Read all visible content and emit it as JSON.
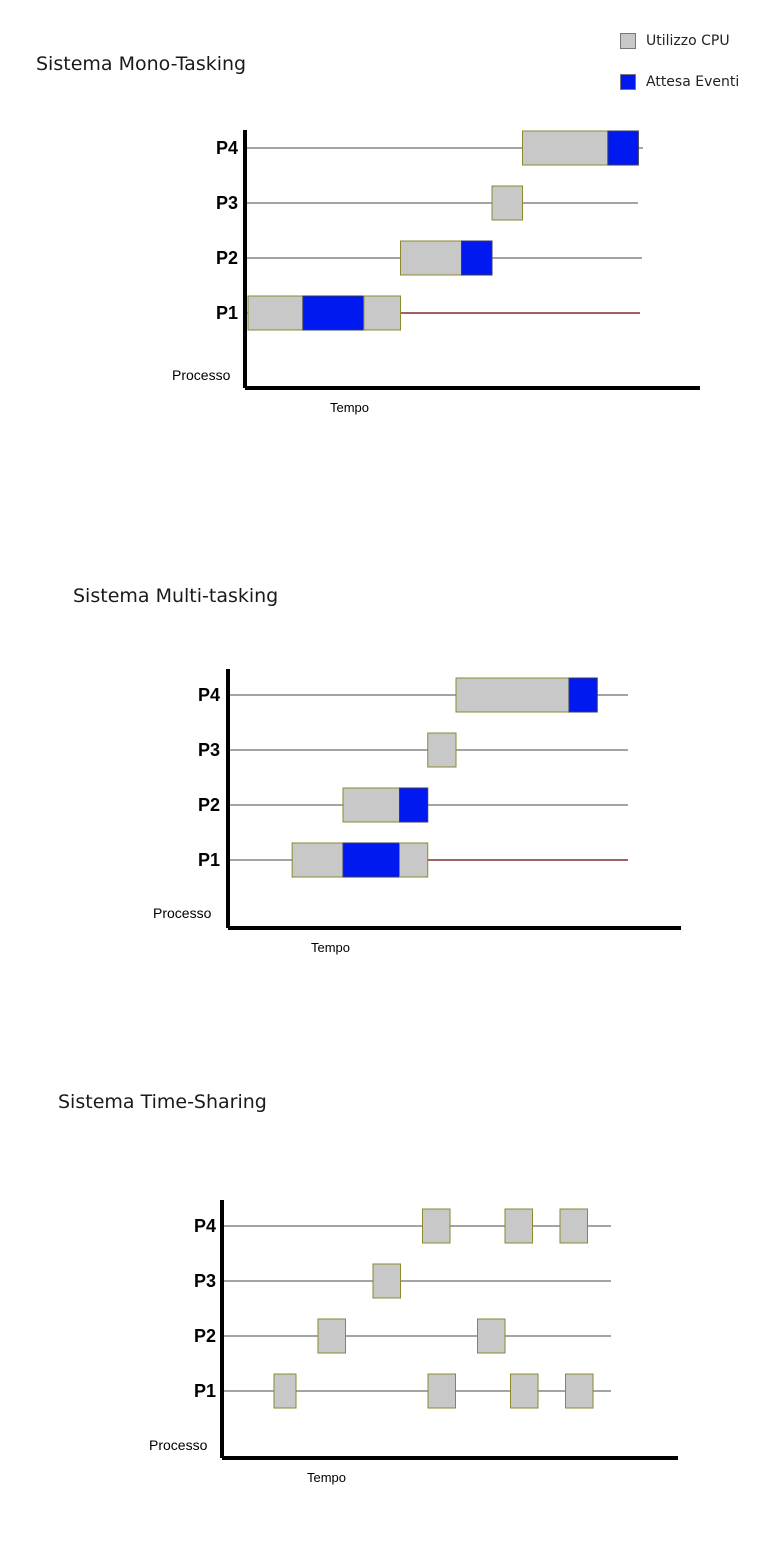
{
  "legend": {
    "cpu": {
      "label": "Utilizzo CPU",
      "color": "#c8c8c8",
      "border": "#7a7a7a"
    },
    "wait": {
      "label": "Attesa Eventi",
      "color": "#0019f0",
      "border": "#3a3a5a"
    }
  },
  "colors": {
    "axis": "#000000",
    "line": "#6e6e6e",
    "p1_line_after": "#7a1a1a",
    "box_edge": "#8a8a30"
  },
  "y_label": "Processo",
  "x_label": "Tempo",
  "chart_data": [
    {
      "type": "gantt",
      "title": "Sistema Mono-Tasking",
      "processes": [
        "P1",
        "P2",
        "P3",
        "P4"
      ],
      "segments": {
        "P1": [
          {
            "start": 0,
            "end": 4.5,
            "kind": "cpu"
          },
          {
            "start": 4.5,
            "end": 9.5,
            "kind": "wait"
          },
          {
            "start": 9.5,
            "end": 12.5,
            "kind": "cpu"
          }
        ],
        "P2": [
          {
            "start": 12.5,
            "end": 17.5,
            "kind": "cpu"
          },
          {
            "start": 17.5,
            "end": 20,
            "kind": "wait"
          }
        ],
        "P3": [
          {
            "start": 20,
            "end": 22.5,
            "kind": "cpu"
          }
        ],
        "P4": [
          {
            "start": 22.5,
            "end": 29.5,
            "kind": "cpu"
          },
          {
            "start": 29.5,
            "end": 32,
            "kind": "wait"
          }
        ]
      }
    },
    {
      "type": "gantt",
      "title": "Sistema Multi-tasking",
      "processes": [
        "P1",
        "P2",
        "P3",
        "P4"
      ],
      "segments": {
        "P1": [
          {
            "start": 5.5,
            "end": 10,
            "kind": "cpu"
          },
          {
            "start": 10,
            "end": 15,
            "kind": "wait"
          },
          {
            "start": 15,
            "end": 17.5,
            "kind": "cpu"
          }
        ],
        "P2": [
          {
            "start": 10,
            "end": 15,
            "kind": "cpu"
          },
          {
            "start": 15,
            "end": 17.5,
            "kind": "wait"
          }
        ],
        "P3": [
          {
            "start": 17.5,
            "end": 20,
            "kind": "cpu"
          }
        ],
        "P4": [
          {
            "start": 20,
            "end": 30,
            "kind": "cpu"
          },
          {
            "start": 30,
            "end": 32.5,
            "kind": "wait"
          }
        ]
      }
    },
    {
      "type": "gantt",
      "title": "Sistema Time-Sharing",
      "processes": [
        "P1",
        "P2",
        "P3",
        "P4"
      ],
      "segments": {
        "P1": [
          {
            "start": 4,
            "end": 6,
            "kind": "cpu"
          },
          {
            "start": 18,
            "end": 20.5,
            "kind": "cpu"
          },
          {
            "start": 25.5,
            "end": 28,
            "kind": "cpu"
          },
          {
            "start": 30.5,
            "end": 33,
            "kind": "cpu"
          }
        ],
        "P2": [
          {
            "start": 8,
            "end": 10.5,
            "kind": "cpu"
          },
          {
            "start": 22.5,
            "end": 25,
            "kind": "cpu"
          }
        ],
        "P3": [
          {
            "start": 13,
            "end": 15.5,
            "kind": "cpu"
          }
        ],
        "P4": [
          {
            "start": 17.5,
            "end": 20,
            "kind": "cpu"
          },
          {
            "start": 25,
            "end": 27.5,
            "kind": "cpu"
          },
          {
            "start": 30,
            "end": 32.5,
            "kind": "cpu"
          }
        ]
      }
    }
  ]
}
